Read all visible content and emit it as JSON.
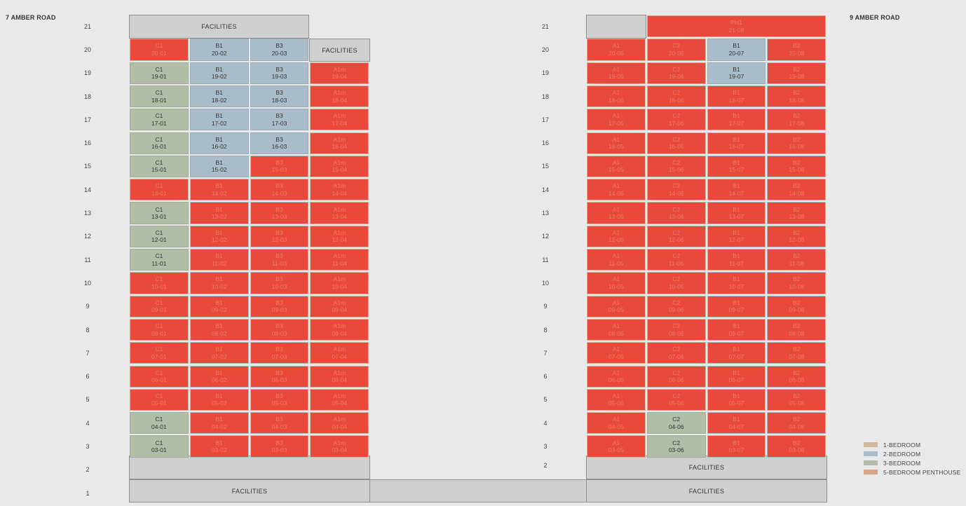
{
  "blocks": [
    {
      "title": "7 AMBER ROAD",
      "floor_labels": [
        "21",
        "20",
        "19",
        "18",
        "17",
        "16",
        "15",
        "14",
        "13",
        "12",
        "11",
        "10",
        "9",
        "8",
        "7",
        "6",
        "5",
        "4",
        "3",
        "2",
        "1"
      ],
      "facilities": [
        {
          "id": "f7-21",
          "label": "FACILITIES"
        },
        {
          "id": "f7-20",
          "label": "FACILITIES"
        },
        {
          "id": "f7-2",
          "label": ""
        },
        {
          "id": "f7-1",
          "label": "FACILITIES"
        }
      ],
      "units": [
        {
          "type": "C1",
          "number": "20-01",
          "status": "sold"
        },
        {
          "type": "B1",
          "number": "20-02",
          "status": "available"
        },
        {
          "type": "B3",
          "number": "20-03",
          "status": "available"
        },
        {
          "type": "C1",
          "number": "19-01",
          "status": "available"
        },
        {
          "type": "B1",
          "number": "19-02",
          "status": "available"
        },
        {
          "type": "B3",
          "number": "19-03",
          "status": "available"
        },
        {
          "type": "A1m",
          "number": "19-04",
          "status": "sold"
        },
        {
          "type": "C1",
          "number": "18-01",
          "status": "available"
        },
        {
          "type": "B1",
          "number": "18-02",
          "status": "available"
        },
        {
          "type": "B3",
          "number": "18-03",
          "status": "available"
        },
        {
          "type": "A1m",
          "number": "18-04",
          "status": "sold"
        },
        {
          "type": "C1",
          "number": "17-01",
          "status": "available"
        },
        {
          "type": "B1",
          "number": "17-02",
          "status": "available"
        },
        {
          "type": "B3",
          "number": "17-03",
          "status": "available"
        },
        {
          "type": "A1m",
          "number": "17-04",
          "status": "sold"
        },
        {
          "type": "C1",
          "number": "16-01",
          "status": "available"
        },
        {
          "type": "B1",
          "number": "16-02",
          "status": "available"
        },
        {
          "type": "B3",
          "number": "16-03",
          "status": "available"
        },
        {
          "type": "A1m",
          "number": "16-04",
          "status": "sold"
        },
        {
          "type": "C1",
          "number": "15-01",
          "status": "available"
        },
        {
          "type": "B1",
          "number": "15-02",
          "status": "available"
        },
        {
          "type": "B3",
          "number": "15-03",
          "status": "sold"
        },
        {
          "type": "A1m",
          "number": "15-04",
          "status": "sold"
        },
        {
          "type": "C1",
          "number": "14-01",
          "status": "sold"
        },
        {
          "type": "B1",
          "number": "14-02",
          "status": "sold"
        },
        {
          "type": "B3",
          "number": "14-03",
          "status": "sold"
        },
        {
          "type": "A1m",
          "number": "14-04",
          "status": "sold"
        },
        {
          "type": "C1",
          "number": "13-01",
          "status": "available"
        },
        {
          "type": "B1",
          "number": "13-02",
          "status": "sold"
        },
        {
          "type": "B3",
          "number": "13-03",
          "status": "sold"
        },
        {
          "type": "A1m",
          "number": "13-04",
          "status": "sold"
        },
        {
          "type": "C1",
          "number": "12-01",
          "status": "available"
        },
        {
          "type": "B1",
          "number": "12-02",
          "status": "sold"
        },
        {
          "type": "B3",
          "number": "12-03",
          "status": "sold"
        },
        {
          "type": "A1m",
          "number": "12-04",
          "status": "sold"
        },
        {
          "type": "C1",
          "number": "11-01",
          "status": "available"
        },
        {
          "type": "B1",
          "number": "11-02",
          "status": "sold"
        },
        {
          "type": "B3",
          "number": "11-03",
          "status": "sold"
        },
        {
          "type": "A1m",
          "number": "11-04",
          "status": "sold"
        },
        {
          "type": "C1",
          "number": "10-01",
          "status": "sold"
        },
        {
          "type": "B1",
          "number": "10-02",
          "status": "sold"
        },
        {
          "type": "B3",
          "number": "10-03",
          "status": "sold"
        },
        {
          "type": "A1m",
          "number": "10-04",
          "status": "sold"
        },
        {
          "type": "C1",
          "number": "09-01",
          "status": "sold"
        },
        {
          "type": "B1",
          "number": "09-02",
          "status": "sold"
        },
        {
          "type": "B3",
          "number": "09-03",
          "status": "sold"
        },
        {
          "type": "A1m",
          "number": "09-04",
          "status": "sold"
        },
        {
          "type": "C1",
          "number": "08-01",
          "status": "sold"
        },
        {
          "type": "B1",
          "number": "08-02",
          "status": "sold"
        },
        {
          "type": "B3",
          "number": "08-03",
          "status": "sold"
        },
        {
          "type": "A1m",
          "number": "08-04",
          "status": "sold"
        },
        {
          "type": "C1",
          "number": "07-01",
          "status": "sold"
        },
        {
          "type": "B1",
          "number": "07-02",
          "status": "sold"
        },
        {
          "type": "B3",
          "number": "07-03",
          "status": "sold"
        },
        {
          "type": "A1m",
          "number": "07-04",
          "status": "sold"
        },
        {
          "type": "C1",
          "number": "06-01",
          "status": "sold"
        },
        {
          "type": "B1",
          "number": "06-02",
          "status": "sold"
        },
        {
          "type": "B3",
          "number": "06-03",
          "status": "sold"
        },
        {
          "type": "A1m",
          "number": "06-04",
          "status": "sold"
        },
        {
          "type": "C1",
          "number": "05-01",
          "status": "sold"
        },
        {
          "type": "B1",
          "number": "05-02",
          "status": "sold"
        },
        {
          "type": "B3",
          "number": "05-03",
          "status": "sold"
        },
        {
          "type": "A1m",
          "number": "05-04",
          "status": "sold"
        },
        {
          "type": "C1",
          "number": "04-01",
          "status": "available"
        },
        {
          "type": "B1",
          "number": "04-02",
          "status": "sold"
        },
        {
          "type": "B3",
          "number": "04-03",
          "status": "sold"
        },
        {
          "type": "A1m",
          "number": "04-04",
          "status": "sold"
        },
        {
          "type": "C1",
          "number": "03-01",
          "status": "available"
        },
        {
          "type": "B1",
          "number": "03-02",
          "status": "sold"
        },
        {
          "type": "B3",
          "number": "03-03",
          "status": "sold"
        },
        {
          "type": "A1m",
          "number": "03-04",
          "status": "sold"
        }
      ]
    },
    {
      "title": "9 AMBER ROAD",
      "floor_labels": [
        "21",
        "20",
        "19",
        "18",
        "17",
        "16",
        "15",
        "14",
        "13",
        "12",
        "11",
        "10",
        "9",
        "8",
        "7",
        "6",
        "5",
        "4",
        "3",
        "2"
      ],
      "facilities": [
        {
          "id": "f9-21",
          "label": ""
        },
        {
          "id": "f9-2",
          "label": "FACILITIES"
        },
        {
          "id": "f9-1",
          "label": "FACILITIES"
        }
      ],
      "units": [
        {
          "type": "PH1",
          "number": "21-08",
          "status": "sold"
        },
        {
          "type": "A1",
          "number": "20-05",
          "status": "sold"
        },
        {
          "type": "C2",
          "number": "20-06",
          "status": "sold"
        },
        {
          "type": "B1",
          "number": "20-07",
          "status": "available"
        },
        {
          "type": "B2",
          "number": "20-08",
          "status": "sold"
        },
        {
          "type": "A1",
          "number": "19-05",
          "status": "sold"
        },
        {
          "type": "C2",
          "number": "19-06",
          "status": "sold"
        },
        {
          "type": "B1",
          "number": "19-07",
          "status": "available"
        },
        {
          "type": "B2",
          "number": "19-08",
          "status": "sold"
        },
        {
          "type": "A1",
          "number": "18-05",
          "status": "sold"
        },
        {
          "type": "C2",
          "number": "18-06",
          "status": "sold"
        },
        {
          "type": "B1",
          "number": "18-07",
          "status": "sold"
        },
        {
          "type": "B2",
          "number": "18-08",
          "status": "sold"
        },
        {
          "type": "A1",
          "number": "17-05",
          "status": "sold"
        },
        {
          "type": "C2",
          "number": "17-06",
          "status": "sold"
        },
        {
          "type": "B1",
          "number": "17-07",
          "status": "sold"
        },
        {
          "type": "B2",
          "number": "17-08",
          "status": "sold"
        },
        {
          "type": "A1",
          "number": "16-05",
          "status": "sold"
        },
        {
          "type": "C2",
          "number": "16-06",
          "status": "sold"
        },
        {
          "type": "B1",
          "number": "16-07",
          "status": "sold"
        },
        {
          "type": "B2",
          "number": "16-08",
          "status": "sold"
        },
        {
          "type": "A1",
          "number": "15-05",
          "status": "sold"
        },
        {
          "type": "C2",
          "number": "15-06",
          "status": "sold"
        },
        {
          "type": "B1",
          "number": "15-07",
          "status": "sold"
        },
        {
          "type": "B2",
          "number": "15-08",
          "status": "sold"
        },
        {
          "type": "A1",
          "number": "14-05",
          "status": "sold"
        },
        {
          "type": "C2",
          "number": "14-06",
          "status": "sold"
        },
        {
          "type": "B1",
          "number": "14-07",
          "status": "sold"
        },
        {
          "type": "B2",
          "number": "14-08",
          "status": "sold"
        },
        {
          "type": "A1",
          "number": "13-05",
          "status": "sold"
        },
        {
          "type": "C2",
          "number": "13-06",
          "status": "sold"
        },
        {
          "type": "B1",
          "number": "13-07",
          "status": "sold"
        },
        {
          "type": "B2",
          "number": "13-08",
          "status": "sold"
        },
        {
          "type": "A1",
          "number": "12-05",
          "status": "sold"
        },
        {
          "type": "C2",
          "number": "12-06",
          "status": "sold"
        },
        {
          "type": "B1",
          "number": "12-07",
          "status": "sold"
        },
        {
          "type": "B2",
          "number": "12-08",
          "status": "sold"
        },
        {
          "type": "A1",
          "number": "11-05",
          "status": "sold"
        },
        {
          "type": "C2",
          "number": "11-06",
          "status": "sold"
        },
        {
          "type": "B1",
          "number": "11-07",
          "status": "sold"
        },
        {
          "type": "B2",
          "number": "11-08",
          "status": "sold"
        },
        {
          "type": "A1",
          "number": "10-05",
          "status": "sold"
        },
        {
          "type": "C2",
          "number": "10-06",
          "status": "sold"
        },
        {
          "type": "B1",
          "number": "10-07",
          "status": "sold"
        },
        {
          "type": "B2",
          "number": "10-08",
          "status": "sold"
        },
        {
          "type": "A1",
          "number": "09-05",
          "status": "sold"
        },
        {
          "type": "C2",
          "number": "09-06",
          "status": "sold"
        },
        {
          "type": "B1",
          "number": "09-07",
          "status": "sold"
        },
        {
          "type": "B2",
          "number": "09-08",
          "status": "sold"
        },
        {
          "type": "A1",
          "number": "08-05",
          "status": "sold"
        },
        {
          "type": "C2",
          "number": "08-06",
          "status": "sold"
        },
        {
          "type": "B1",
          "number": "08-07",
          "status": "sold"
        },
        {
          "type": "B2",
          "number": "08-08",
          "status": "sold"
        },
        {
          "type": "A1",
          "number": "07-05",
          "status": "sold"
        },
        {
          "type": "C2",
          "number": "07-06",
          "status": "sold"
        },
        {
          "type": "B1",
          "number": "07-07",
          "status": "sold"
        },
        {
          "type": "B2",
          "number": "07-08",
          "status": "sold"
        },
        {
          "type": "A1",
          "number": "06-05",
          "status": "sold"
        },
        {
          "type": "C2",
          "number": "06-06",
          "status": "sold"
        },
        {
          "type": "B1",
          "number": "06-07",
          "status": "sold"
        },
        {
          "type": "B2",
          "number": "06-08",
          "status": "sold"
        },
        {
          "type": "A1",
          "number": "05-05",
          "status": "sold"
        },
        {
          "type": "C2",
          "number": "05-06",
          "status": "sold"
        },
        {
          "type": "B1",
          "number": "05-07",
          "status": "sold"
        },
        {
          "type": "B2",
          "number": "05-08",
          "status": "sold"
        },
        {
          "type": "A1",
          "number": "04-05",
          "status": "sold"
        },
        {
          "type": "C2",
          "number": "04-06",
          "status": "available"
        },
        {
          "type": "B1",
          "number": "04-07",
          "status": "sold"
        },
        {
          "type": "B2",
          "number": "04-08",
          "status": "sold"
        },
        {
          "type": "A1",
          "number": "03-05",
          "status": "sold"
        },
        {
          "type": "C2",
          "number": "03-06",
          "status": "available"
        },
        {
          "type": "B1",
          "number": "03-07",
          "status": "sold"
        },
        {
          "type": "B2",
          "number": "03-08",
          "status": "sold"
        }
      ]
    }
  ],
  "legend": [
    {
      "label": "1-BEDROOM",
      "color": "#cfb99b"
    },
    {
      "label": "2-BEDROOM",
      "color": "#a9bcc9"
    },
    {
      "label": "3-BEDROOM",
      "color": "#b1bda6"
    },
    {
      "label": "5-BEDROOM PENTHOUSE",
      "color": "#d9a482"
    }
  ],
  "colors": {
    "sold": "#e8493a",
    "background": "#e9e9ea",
    "facility": "#cfcfd0"
  }
}
